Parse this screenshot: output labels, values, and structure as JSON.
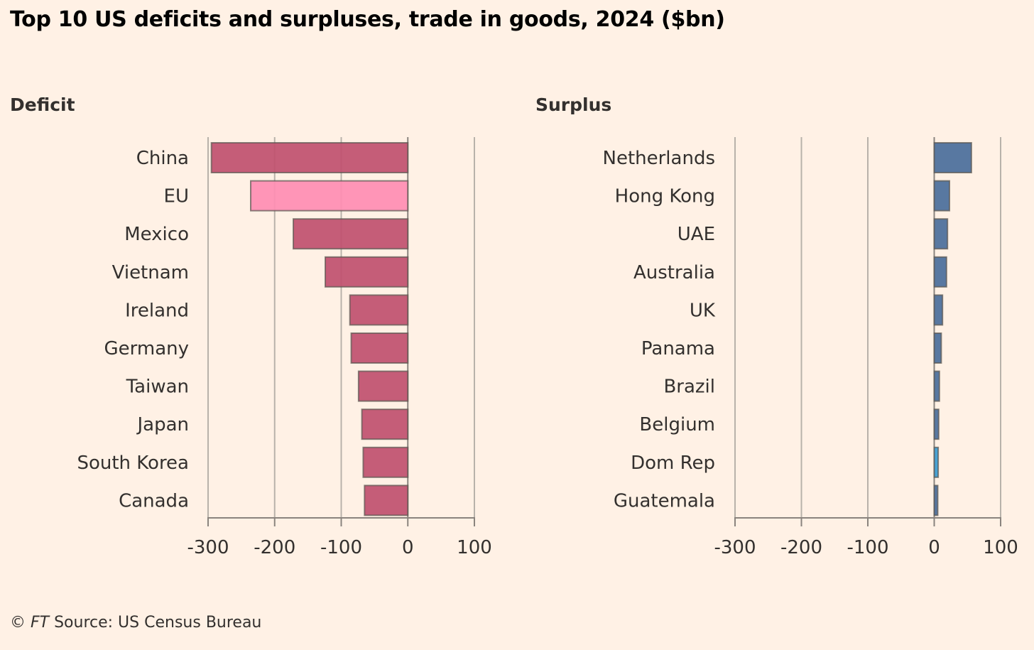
{
  "title": "Top 10 US deficits and surpluses, trade in goods, 2024 ($bn)",
  "source": {
    "copyright": "© ",
    "brand": "FT",
    "text": " Source: US Census Bureau"
  },
  "colors": {
    "background": "#fff1e5",
    "deficit": "#c0506f",
    "deficit_highlight": "#ff8db3",
    "surplus": "#4a6e9b",
    "surplus_highlight": "#3a9bd2",
    "grid": "#b8b2aa"
  },
  "chart_data": [
    {
      "type": "bar",
      "orientation": "horizontal",
      "title": "Deficit",
      "categories": [
        "China",
        "EU",
        "Mexico",
        "Vietnam",
        "Ireland",
        "Germany",
        "Taiwan",
        "Japan",
        "South Korea",
        "Canada"
      ],
      "values": [
        -295,
        -236,
        -172,
        -124,
        -87,
        -85,
        -74,
        -69,
        -67,
        -65
      ],
      "highlight": [
        "EU"
      ],
      "xlim": [
        -300,
        100
      ],
      "xticks": [
        -300,
        -200,
        -100,
        0,
        100
      ],
      "xtick_labels": [
        "-300",
        "-200",
        "-100",
        "0",
        "100"
      ],
      "grid": true
    },
    {
      "type": "bar",
      "orientation": "horizontal",
      "title": "Surplus",
      "categories": [
        "Netherlands",
        "Hong Kong",
        "UAE",
        "Australia",
        "UK",
        "Panama",
        "Brazil",
        "Belgium",
        "Dom Rep",
        "Guatemala"
      ],
      "values": [
        56,
        23,
        20,
        18.5,
        12.5,
        10.6,
        7.8,
        6.7,
        6,
        5.3
      ],
      "highlight": [
        "Dom Rep"
      ],
      "xlim": [
        -300,
        100
      ],
      "xticks": [
        -300,
        -200,
        -100,
        0,
        100
      ],
      "xtick_labels": [
        "-300",
        "-200",
        "-100",
        "0",
        "100"
      ],
      "grid": true
    }
  ]
}
